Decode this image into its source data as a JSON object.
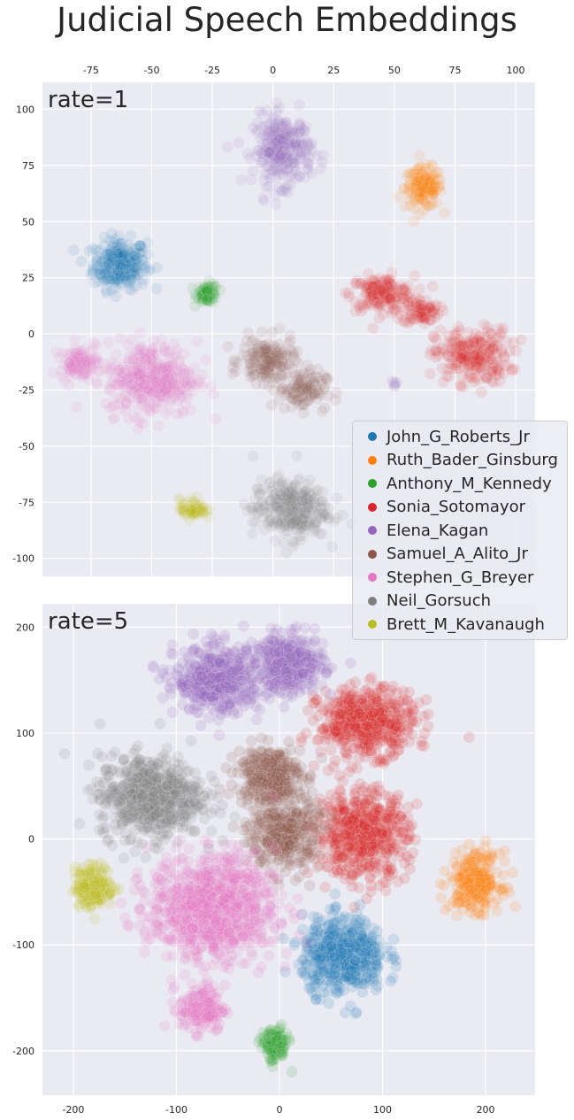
{
  "title": "Judicial Speech Embeddings",
  "legend": {
    "placement": "right, spanning both panels",
    "entries": [
      {
        "name": "John_G_Roberts_Jr",
        "color": "#1f77b4"
      },
      {
        "name": "Ruth_Bader_Ginsburg",
        "color": "#ff7f0e"
      },
      {
        "name": "Anthony_M_Kennedy",
        "color": "#2ca02c"
      },
      {
        "name": "Sonia_Sotomayor",
        "color": "#d62728"
      },
      {
        "name": "Elena_Kagan",
        "color": "#9467bd"
      },
      {
        "name": "Samuel_A_Alito_Jr",
        "color": "#8c564b"
      },
      {
        "name": "Stephen_G_Breyer",
        "color": "#e377c2"
      },
      {
        "name": "Neil_Gorsuch",
        "color": "#7f7f7f"
      },
      {
        "name": "Brett_M_Kavanaugh",
        "color": "#bcbd22"
      }
    ]
  },
  "chart_data": [
    {
      "type": "scatter",
      "panel_label": "rate=1",
      "xlim": [
        -95,
        108
      ],
      "ylim": [
        -108,
        112
      ],
      "x_ticks": [
        -75,
        -50,
        -25,
        0,
        25,
        50,
        75,
        100
      ],
      "y_ticks": [
        -100,
        -75,
        -50,
        -25,
        0,
        25,
        50,
        75,
        100
      ],
      "x_tick_position": "top",
      "grid": true,
      "background": "#eaeaf2",
      "point_alpha": 0.1,
      "clusters": [
        {
          "name": "John_G_Roberts_Jr",
          "center": [
            -63,
            31
          ],
          "spread": [
            10,
            10
          ],
          "points": 260
        },
        {
          "name": "Ruth_Bader_Ginsburg",
          "center": [
            62,
            65
          ],
          "spread": [
            7,
            8
          ],
          "points": 160
        },
        {
          "name": "Anthony_M_Kennedy",
          "center": [
            -27,
            18
          ],
          "spread": [
            4,
            4
          ],
          "points": 70
        },
        {
          "name": "Sonia_Sotomayor",
          "center": [
            45,
            18
          ],
          "spread": [
            12,
            7
          ],
          "points": 170
        },
        {
          "name": "Sonia_Sotomayor",
          "center": [
            61,
            10
          ],
          "spread": [
            7,
            5
          ],
          "points": 80
        },
        {
          "name": "Sonia_Sotomayor",
          "center": [
            82,
            -10
          ],
          "spread": [
            14,
            11
          ],
          "points": 240
        },
        {
          "name": "Elena_Kagan",
          "center": [
            4,
            82
          ],
          "spread": [
            11,
            14
          ],
          "points": 280
        },
        {
          "name": "Elena_Kagan",
          "center": [
            50,
            -23
          ],
          "spread": [
            1.5,
            1.5
          ],
          "points": 6
        },
        {
          "name": "Samuel_A_Alito_Jr",
          "center": [
            -2,
            -12
          ],
          "spread": [
            10,
            9
          ],
          "points": 170
        },
        {
          "name": "Samuel_A_Alito_Jr",
          "center": [
            12,
            -25
          ],
          "spread": [
            9,
            8
          ],
          "points": 110
        },
        {
          "name": "Stephen_G_Breyer",
          "center": [
            -50,
            -20
          ],
          "spread": [
            17,
            15
          ],
          "points": 380
        },
        {
          "name": "Stephen_G_Breyer",
          "center": [
            -80,
            -13
          ],
          "spread": [
            7,
            6
          ],
          "points": 100
        },
        {
          "name": "Neil_Gorsuch",
          "center": [
            7,
            -78
          ],
          "spread": [
            14,
            12
          ],
          "points": 300
        },
        {
          "name": "Brett_M_Kavanaugh",
          "center": [
            -33,
            -78
          ],
          "spread": [
            5,
            4
          ],
          "points": 70
        }
      ]
    },
    {
      "type": "scatter",
      "panel_label": "rate=5",
      "xlim": [
        -230,
        248
      ],
      "ylim": [
        -242,
        222
      ],
      "x_ticks": [
        -200,
        -100,
        0,
        100,
        200
      ],
      "y_ticks": [
        -200,
        -100,
        0,
        100,
        200
      ],
      "x_tick_position": "bottom",
      "grid": true,
      "background": "#eaeaf2",
      "point_alpha": 0.15,
      "clusters": [
        {
          "name": "John_G_Roberts_Jr",
          "center": [
            62,
            -110
          ],
          "spread": [
            36,
            32
          ],
          "points": 520
        },
        {
          "name": "Ruth_Bader_Ginsburg",
          "center": [
            190,
            -40
          ],
          "spread": [
            22,
            25
          ],
          "points": 260
        },
        {
          "name": "Anthony_M_Kennedy",
          "center": [
            -5,
            -195
          ],
          "spread": [
            12,
            15
          ],
          "points": 110
        },
        {
          "name": "Sonia_Sotomayor",
          "center": [
            85,
            110
          ],
          "spread": [
            42,
            28
          ],
          "points": 520
        },
        {
          "name": "Sonia_Sotomayor",
          "center": [
            80,
            5
          ],
          "spread": [
            40,
            38
          ],
          "points": 560
        },
        {
          "name": "Elena_Kagan",
          "center": [
            -60,
            150
          ],
          "spread": [
            38,
            28
          ],
          "points": 480
        },
        {
          "name": "Elena_Kagan",
          "center": [
            10,
            165
          ],
          "spread": [
            30,
            25
          ],
          "points": 360
        },
        {
          "name": "Samuel_A_Alito_Jr",
          "center": [
            -10,
            60
          ],
          "spread": [
            28,
            25
          ],
          "points": 320
        },
        {
          "name": "Samuel_A_Alito_Jr",
          "center": [
            5,
            5
          ],
          "spread": [
            30,
            32
          ],
          "points": 360
        },
        {
          "name": "Stephen_G_Breyer",
          "center": [
            -65,
            -65
          ],
          "spread": [
            55,
            45
          ],
          "points": 900
        },
        {
          "name": "Stephen_G_Breyer",
          "center": [
            -75,
            -160
          ],
          "spread": [
            20,
            20
          ],
          "points": 180
        },
        {
          "name": "Neil_Gorsuch",
          "center": [
            -125,
            40
          ],
          "spread": [
            45,
            35
          ],
          "points": 620
        },
        {
          "name": "Brett_M_Kavanaugh",
          "center": [
            -180,
            -45
          ],
          "spread": [
            17,
            18
          ],
          "points": 190
        }
      ]
    }
  ]
}
